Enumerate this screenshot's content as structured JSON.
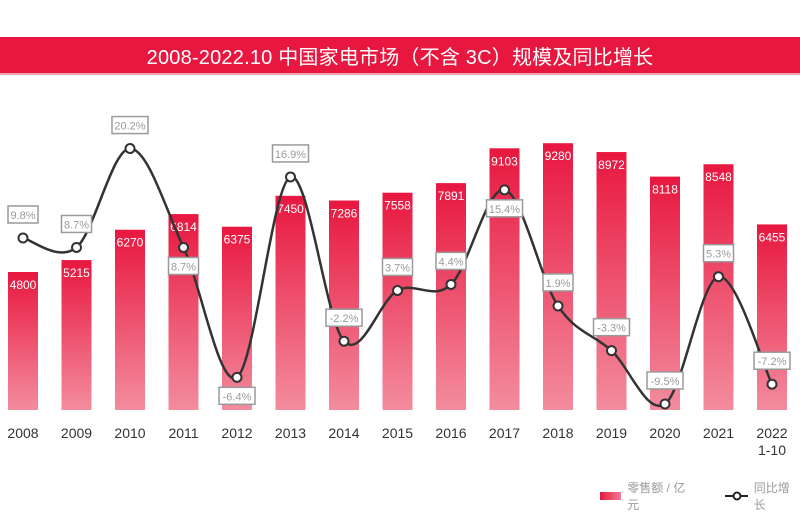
{
  "title": "2008-2022.10 中国家电市场（不含 3C）规模及同比增长",
  "colors": {
    "bar_top": "#e8173f",
    "bar_bottom": "#f38c9e",
    "line": "#333333",
    "title_bg": "#e8173f",
    "label_border": "#9a9a9a",
    "label_text": "#9a9a9a"
  },
  "chart_data": {
    "type": "bar",
    "title": "2008-2022.10 中国家电市场（不含 3C）规模及同比增长",
    "categories": [
      "2008",
      "2009",
      "2010",
      "2011",
      "2012",
      "2013",
      "2014",
      "2015",
      "2016",
      "2017",
      "2018",
      "2019",
      "2020",
      "2021",
      "2022\n1-10"
    ],
    "category_labels": [
      [
        "2008"
      ],
      [
        "2009"
      ],
      [
        "2010"
      ],
      [
        "2011"
      ],
      [
        "2012"
      ],
      [
        "2013"
      ],
      [
        "2014"
      ],
      [
        "2015"
      ],
      [
        "2016"
      ],
      [
        "2017"
      ],
      [
        "2018"
      ],
      [
        "2019"
      ],
      [
        "2020"
      ],
      [
        "2021"
      ],
      [
        "2022",
        "1-10"
      ]
    ],
    "series": [
      {
        "name": "零售额 / 亿元",
        "type": "bar",
        "values": [
          4800,
          5215,
          6270,
          6814,
          6375,
          7450,
          7286,
          7558,
          7891,
          9103,
          9280,
          8972,
          8118,
          8548,
          6455
        ]
      },
      {
        "name": "同比增长",
        "type": "line",
        "unit": "%",
        "values": [
          9.8,
          8.7,
          20.2,
          8.7,
          -6.4,
          16.9,
          -2.2,
          3.7,
          4.4,
          15.4,
          1.9,
          -3.3,
          -9.5,
          5.3,
          -7.2
        ],
        "labels": [
          "9.8%",
          "8.7%",
          "20.2%",
          "8.7%",
          "-6.4%",
          "16.9%",
          "-2.2%",
          "3.7%",
          "4.4%",
          "15.4%",
          "1.9%",
          "-3.3%",
          "-9.5%",
          "5.3%",
          "-7.2%"
        ]
      }
    ],
    "xlabel": "",
    "ylabel": "",
    "ylim_bar": [
      0,
      10000
    ],
    "ylim_line": [
      -10,
      21
    ],
    "grid": false,
    "legend_position": "bottom-right"
  },
  "legend": {
    "bar_label": "零售额 / 亿元",
    "line_label": "同比增长"
  }
}
